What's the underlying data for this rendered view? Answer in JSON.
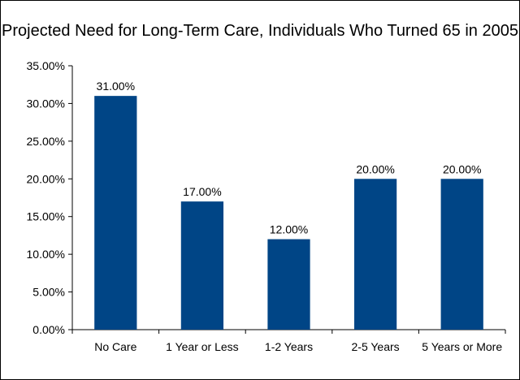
{
  "chart_data": {
    "type": "bar",
    "title": "Projected Need for Long-Term Care, Individuals Who Turned 65 in 2005",
    "xlabel": "",
    "ylabel": "",
    "categories": [
      "No Care",
      "1 Year or Less",
      "1-2 Years",
      "2-5 Years",
      "5 Years or More"
    ],
    "values": [
      31,
      17,
      12,
      20,
      20
    ],
    "data_labels": [
      "31.00%",
      "17.00%",
      "12.00%",
      "20.00%",
      "20.00%"
    ],
    "yticks": [
      0,
      5,
      10,
      15,
      20,
      25,
      30,
      35
    ],
    "ytick_labels": [
      "0.00%",
      "5.00%",
      "10.00%",
      "15.00%",
      "20.00%",
      "25.00%",
      "30.00%",
      "35.00%"
    ],
    "ylim": [
      0,
      35
    ],
    "grid": false,
    "legend": "none",
    "bar_color": "#004586"
  }
}
